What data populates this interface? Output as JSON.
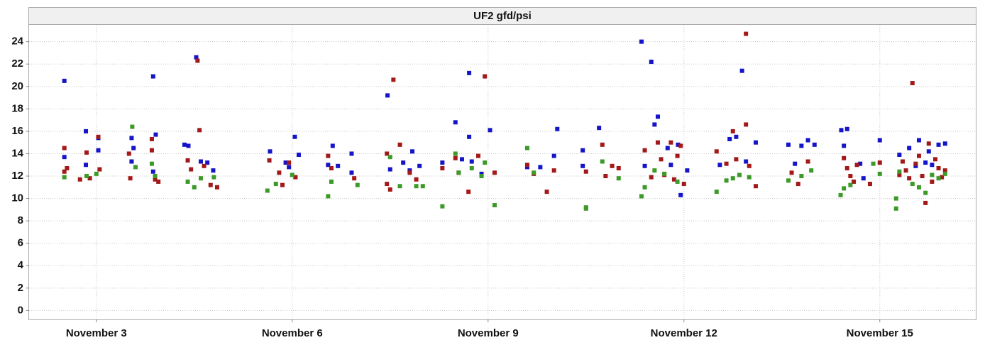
{
  "chart_data": {
    "type": "scatter",
    "title": "UF2 gfd/psi",
    "xlim": [
      1.97,
      16.47
    ],
    "xticks": [
      {
        "value": 3,
        "label": "November 3"
      },
      {
        "value": 6,
        "label": "November 6"
      },
      {
        "value": 9,
        "label": "November 9"
      },
      {
        "value": 12,
        "label": "November 12"
      },
      {
        "value": 15,
        "label": "November 15"
      }
    ],
    "ylim": [
      -0.8,
      25.5
    ],
    "yticks": [
      0,
      2,
      4,
      6,
      8,
      10,
      12,
      14,
      16,
      18,
      20,
      22,
      24
    ],
    "grid": true,
    "series": [
      {
        "color": "#1414c8",
        "x": [
          2.51,
          2.51,
          2.84,
          2.84,
          3.03,
          3.03,
          3.54,
          3.54,
          3.57,
          3.87,
          3.87,
          3.91,
          4.35,
          4.41,
          4.53,
          4.6,
          4.7,
          4.79,
          5.66,
          5.9,
          5.95,
          6.04,
          6.1,
          6.55,
          6.62,
          6.7,
          6.91,
          6.91,
          7.46,
          7.5,
          7.7,
          7.8,
          7.84,
          7.95,
          8.3,
          8.5,
          8.6,
          8.71,
          8.71,
          8.75,
          8.9,
          9.03,
          9.6,
          9.8,
          10.01,
          10.06,
          10.45,
          10.45,
          10.7,
          11.35,
          11.5,
          11.55,
          11.6,
          11.4,
          11.75,
          11.8,
          11.91,
          11.95,
          12.05,
          12.55,
          12.7,
          12.8,
          12.89,
          12.95,
          13.1,
          13.6,
          13.7,
          13.8,
          13.9,
          14.0,
          14.41,
          14.5,
          14.45,
          14.7,
          14.75,
          15.0,
          15.3,
          15.45,
          15.6,
          15.7,
          15.8,
          15.9,
          16.0,
          15.55,
          15.75
        ],
        "values": [
          20.5,
          13.7,
          16.0,
          13.0,
          14.3,
          15.4,
          15.4,
          13.3,
          14.5,
          20.9,
          12.4,
          15.7,
          14.8,
          14.7,
          22.6,
          13.3,
          13.2,
          12.5,
          14.2,
          13.2,
          12.8,
          15.5,
          13.9,
          13.0,
          14.7,
          12.9,
          14.0,
          12.3,
          19.2,
          12.6,
          13.2,
          12.5,
          14.2,
          12.9,
          13.2,
          16.8,
          13.5,
          21.2,
          15.5,
          13.3,
          12.2,
          16.1,
          12.8,
          12.8,
          13.8,
          16.2,
          14.3,
          12.9,
          16.3,
          24.0,
          22.2,
          16.6,
          17.3,
          12.9,
          14.5,
          13.0,
          14.8,
          10.3,
          12.5,
          13.0,
          15.3,
          15.5,
          21.4,
          13.3,
          15.0,
          14.8,
          13.1,
          14.7,
          15.2,
          14.8,
          16.1,
          16.2,
          14.7,
          13.1,
          11.8,
          15.2,
          13.9,
          14.5,
          15.2,
          13.2,
          13.0,
          14.8,
          14.9,
          12.9,
          14.2
        ]
      },
      {
        "color": "#a31818",
        "x": [
          2.51,
          2.51,
          2.55,
          2.75,
          2.85,
          2.9,
          3.03,
          3.05,
          3.5,
          3.52,
          3.85,
          3.85,
          3.9,
          3.95,
          4.4,
          4.45,
          4.55,
          4.58,
          4.65,
          4.75,
          4.85,
          5.65,
          5.8,
          5.85,
          5.95,
          6.05,
          6.55,
          6.6,
          6.95,
          7.45,
          7.45,
          7.55,
          7.5,
          7.65,
          7.8,
          7.9,
          8.3,
          8.5,
          8.55,
          8.7,
          8.85,
          8.95,
          9.1,
          9.6,
          9.7,
          9.9,
          10.01,
          10.5,
          10.75,
          10.8,
          10.9,
          11.0,
          11.4,
          11.5,
          11.6,
          11.65,
          11.7,
          11.8,
          11.85,
          11.9,
          11.95,
          12.0,
          12.5,
          12.65,
          12.75,
          12.8,
          12.95,
          12.95,
          13.0,
          13.1,
          13.65,
          13.75,
          13.9,
          14.45,
          14.5,
          14.55,
          14.6,
          14.65,
          14.85,
          15.0,
          15.3,
          15.5,
          15.4,
          15.45,
          15.55,
          15.65,
          15.7,
          15.75,
          15.8,
          15.85,
          15.9,
          15.95,
          16.0,
          15.6,
          15.35
        ],
        "values": [
          14.5,
          12.4,
          12.7,
          11.7,
          14.1,
          11.8,
          15.5,
          12.6,
          14.0,
          11.8,
          15.3,
          14.3,
          11.7,
          11.5,
          13.4,
          12.6,
          22.3,
          16.1,
          12.9,
          11.2,
          11.0,
          13.4,
          12.3,
          11.2,
          13.2,
          11.9,
          13.8,
          12.7,
          11.8,
          14.0,
          11.3,
          20.6,
          10.8,
          14.8,
          12.3,
          11.7,
          12.7,
          13.6,
          12.3,
          10.6,
          13.8,
          20.9,
          12.3,
          13.0,
          12.2,
          10.6,
          12.5,
          12.4,
          14.8,
          12.0,
          12.9,
          12.7,
          14.3,
          11.9,
          15.0,
          13.5,
          12.1,
          15.0,
          11.7,
          13.8,
          14.7,
          11.3,
          14.2,
          13.1,
          16.0,
          13.5,
          24.7,
          16.6,
          12.9,
          11.1,
          12.3,
          11.3,
          13.3,
          13.6,
          12.7,
          12.0,
          11.5,
          13.0,
          11.3,
          13.2,
          12.1,
          20.3,
          12.5,
          11.8,
          13.1,
          12.0,
          9.6,
          14.9,
          11.5,
          13.5,
          12.7,
          11.9,
          12.5,
          13.8,
          13.3
        ]
      },
      {
        "color": "#3c9a28",
        "x": [
          2.51,
          2.85,
          3.0,
          3.55,
          3.6,
          3.85,
          3.9,
          4.4,
          4.5,
          4.6,
          4.8,
          5.62,
          5.75,
          6.0,
          6.55,
          6.6,
          7.0,
          7.5,
          7.65,
          7.9,
          8.0,
          8.3,
          8.5,
          8.55,
          8.75,
          8.9,
          8.95,
          9.1,
          9.6,
          9.7,
          10.5,
          10.5,
          10.75,
          11.0,
          11.35,
          11.4,
          11.55,
          11.7,
          11.9,
          12.5,
          12.65,
          12.75,
          12.85,
          13.0,
          13.6,
          13.8,
          13.95,
          14.4,
          14.45,
          14.55,
          14.9,
          15.0,
          15.3,
          15.25,
          15.25,
          15.5,
          15.7,
          15.8,
          15.9,
          16.0,
          15.6
        ],
        "values": [
          11.9,
          12.0,
          12.2,
          16.4,
          12.8,
          13.1,
          12.0,
          11.5,
          11.0,
          11.8,
          11.9,
          10.7,
          11.3,
          12.1,
          10.2,
          11.5,
          11.2,
          13.7,
          11.1,
          11.1,
          11.1,
          9.3,
          14.0,
          12.3,
          12.7,
          12.0,
          13.2,
          9.4,
          14.5,
          12.3,
          9.1,
          9.2,
          13.3,
          11.8,
          10.2,
          11.0,
          12.5,
          12.2,
          11.5,
          10.6,
          11.6,
          11.8,
          12.1,
          11.9,
          11.6,
          12.0,
          12.5,
          10.3,
          10.9,
          11.2,
          13.1,
          12.2,
          12.4,
          10.0,
          9.1,
          11.3,
          10.5,
          12.1,
          11.8,
          12.2,
          11.0
        ]
      }
    ]
  }
}
